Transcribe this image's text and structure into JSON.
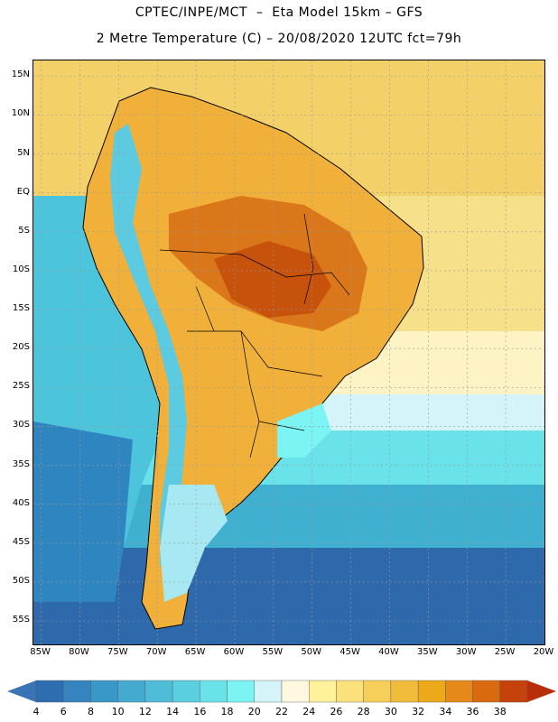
{
  "title": {
    "line1": "CPTEC/INPE/MCT  –  Eta Model 15km – GFS",
    "line2": "2 Metre Temperature (C) – 20/08/2020 12UTC fct=79h"
  },
  "map": {
    "region": "South America",
    "lat_range": [
      -58,
      17
    ],
    "lon_range": [
      -86,
      -20
    ],
    "lat_labels": [
      "15N",
      "10N",
      "5N",
      "EQ",
      "5S",
      "10S",
      "15S",
      "20S",
      "25S",
      "30S",
      "35S",
      "40S",
      "45S",
      "50S",
      "55S"
    ],
    "lat_values": [
      15,
      10,
      5,
      0,
      -5,
      -10,
      -15,
      -20,
      -25,
      -30,
      -35,
      -40,
      -45,
      -50,
      -55
    ],
    "lon_labels": [
      "85W",
      "80W",
      "75W",
      "70W",
      "65W",
      "60W",
      "55W",
      "50W",
      "45W",
      "40W",
      "35W",
      "30W",
      "25W",
      "20W"
    ],
    "lon_values": [
      -85,
      -80,
      -75,
      -70,
      -65,
      -60,
      -55,
      -50,
      -45,
      -40,
      -35,
      -30,
      -25,
      -20
    ]
  },
  "colorbar": {
    "labels": [
      "4",
      "6",
      "8",
      "10",
      "12",
      "14",
      "16",
      "18",
      "20",
      "22",
      "24",
      "26",
      "28",
      "30",
      "32",
      "34",
      "36",
      "38"
    ],
    "colors": [
      "#2e6db0",
      "#3584c0",
      "#3a98c8",
      "#44aacf",
      "#4fbcd8",
      "#5acfe0",
      "#6ae2ea",
      "#7cf4f4",
      "#d4f4fa",
      "#fff8e0",
      "#fff29a",
      "#fbe07c",
      "#f5cf5a",
      "#f0bd3a",
      "#eda91a",
      "#e58a1a",
      "#d96a10",
      "#c6420c"
    ],
    "under_color": "#3a74b4",
    "over_color": "#b82e0a"
  }
}
